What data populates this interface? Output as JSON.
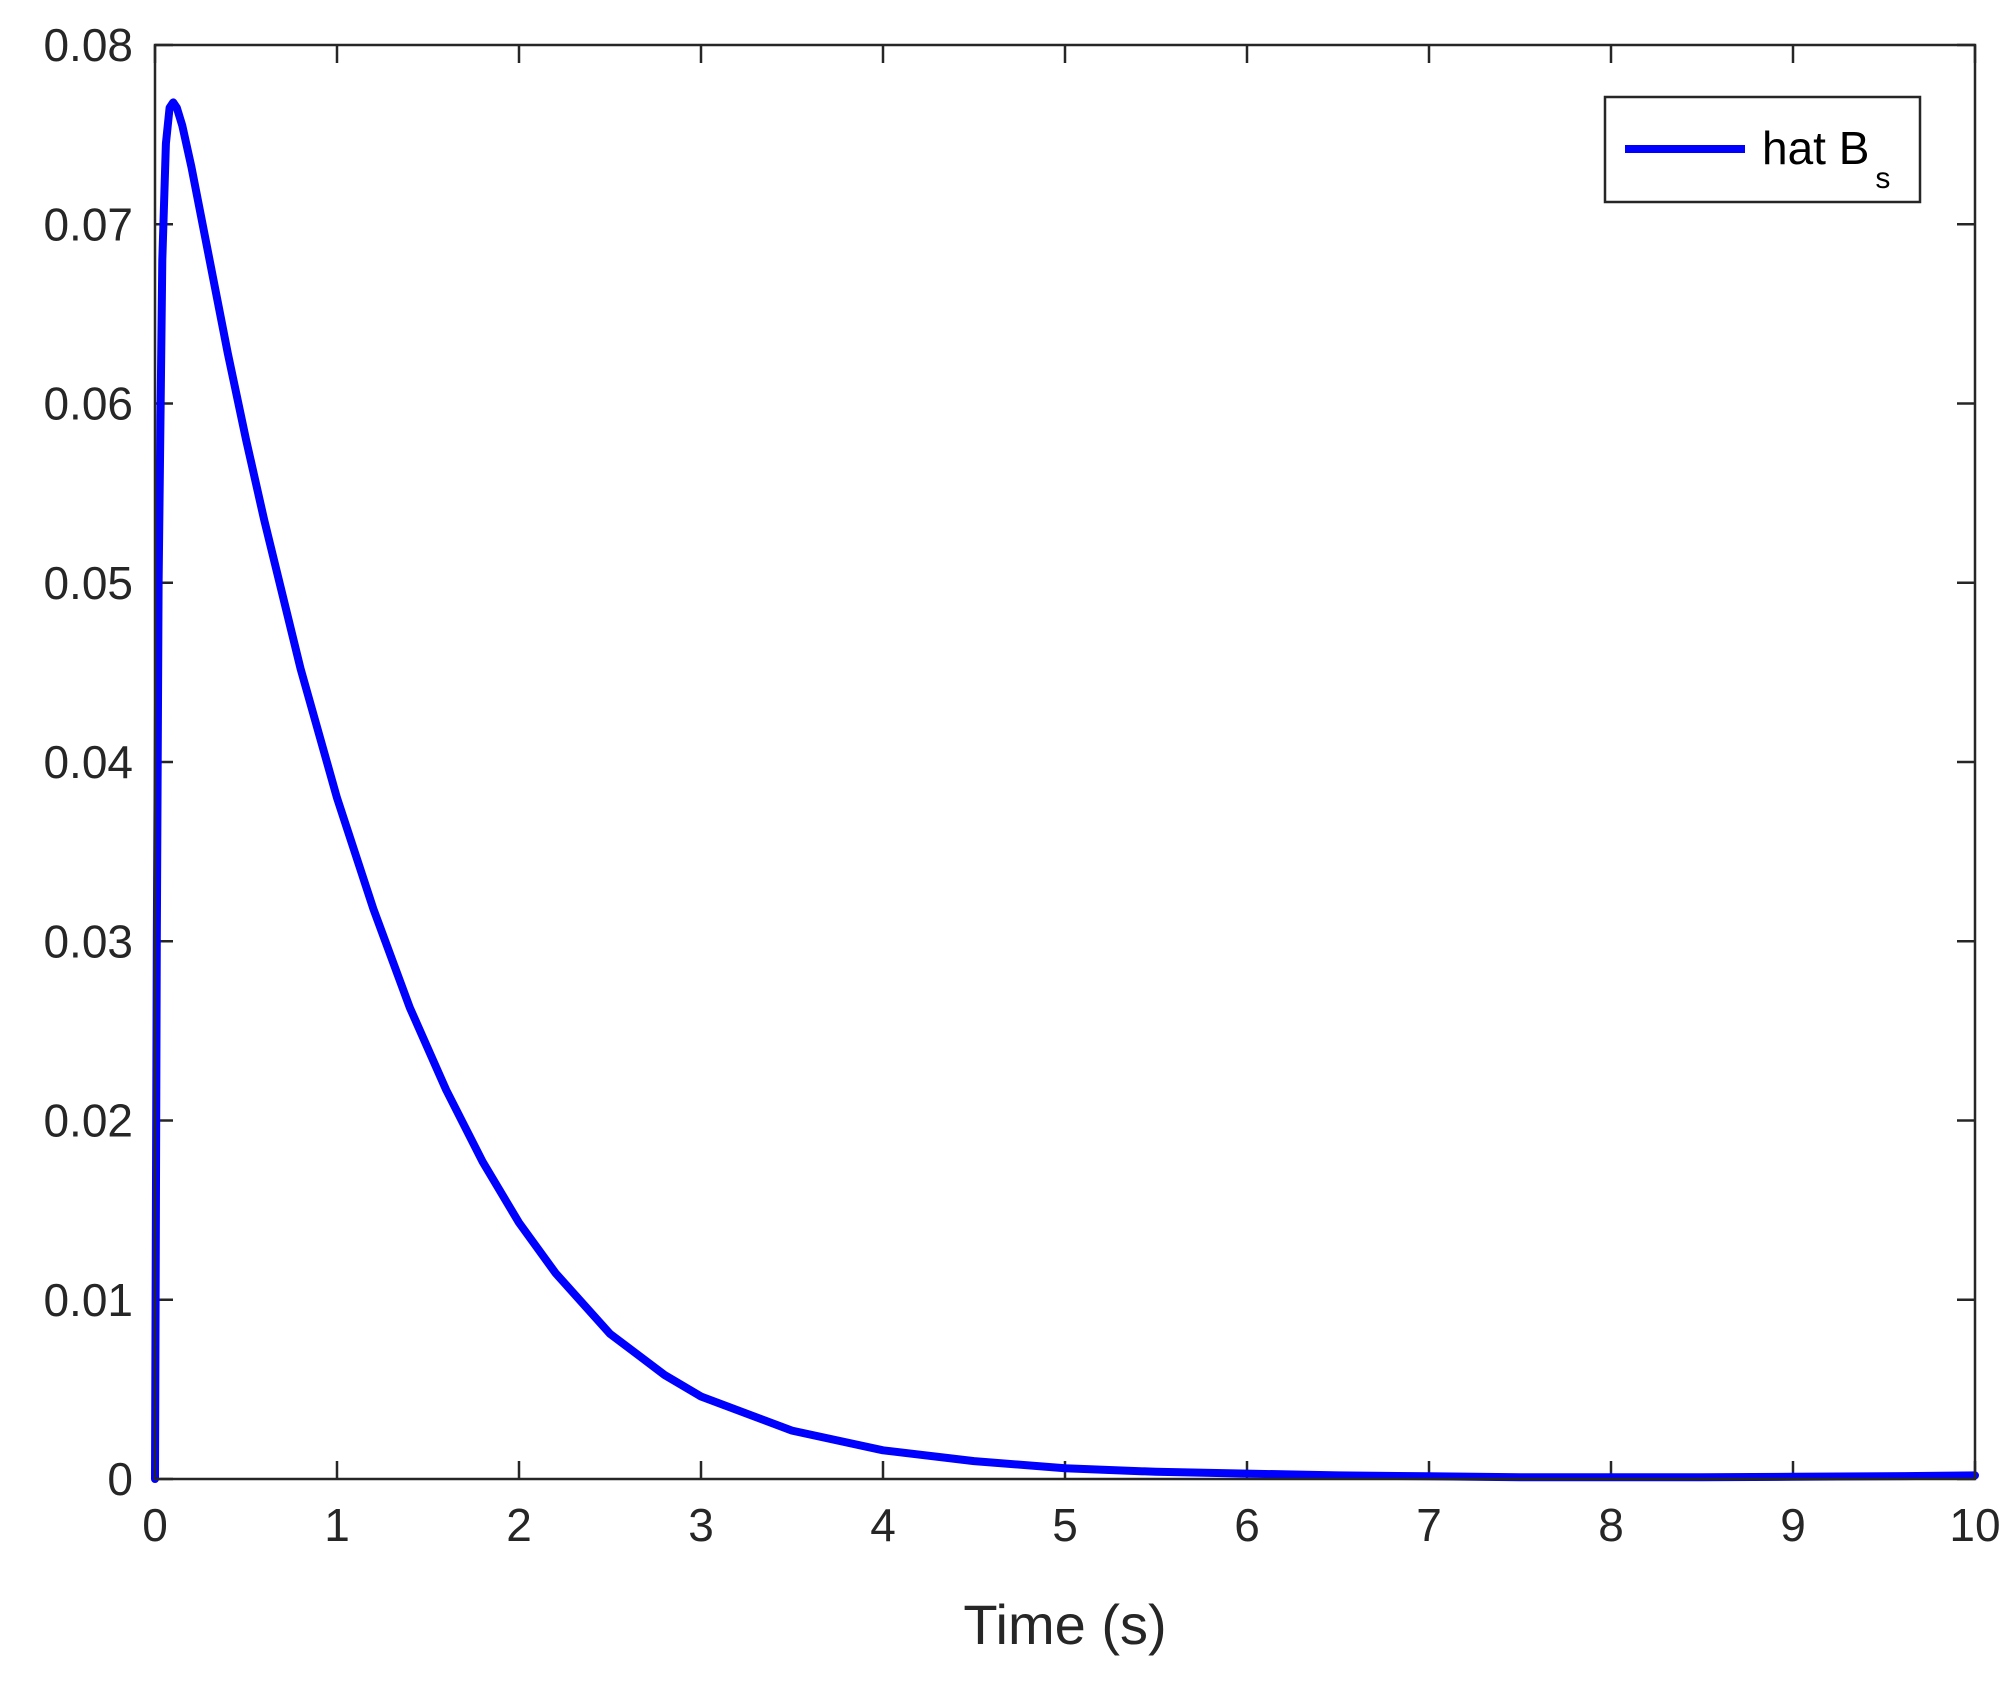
{
  "chart_data": {
    "type": "line",
    "xlabel": "Time (s)",
    "ylabel": "",
    "xlim": [
      0,
      10
    ],
    "ylim": [
      0,
      0.08
    ],
    "x_ticks": [
      0,
      1,
      2,
      3,
      4,
      5,
      6,
      7,
      8,
      9,
      10
    ],
    "x_tick_labels": [
      "0",
      "1",
      "2",
      "3",
      "4",
      "5",
      "6",
      "7",
      "8",
      "9",
      "10"
    ],
    "y_ticks": [
      0,
      0.01,
      0.02,
      0.03,
      0.04,
      0.05,
      0.06,
      0.07,
      0.08
    ],
    "y_tick_labels": [
      "0",
      "0.01",
      "0.02",
      "0.03",
      "0.04",
      "0.05",
      "0.06",
      "0.07",
      "0.08"
    ],
    "grid": false,
    "legend_position": "top-right",
    "legend": {
      "text": "hat B",
      "subscript": "s"
    },
    "series": [
      {
        "name": "hat B_s",
        "color": "#0000ff",
        "x": [
          0,
          0.01,
          0.02,
          0.04,
          0.06,
          0.08,
          0.1,
          0.12,
          0.15,
          0.2,
          0.3,
          0.4,
          0.5,
          0.6,
          0.8,
          1.0,
          1.2,
          1.4,
          1.6,
          1.8,
          2.0,
          2.2,
          2.5,
          2.8,
          3.0,
          3.5,
          4.0,
          4.5,
          5.0,
          5.5,
          6.0,
          6.5,
          7.0,
          7.5,
          8.0,
          8.5,
          9.0,
          9.5,
          10.0
        ],
        "y": [
          0,
          0.03,
          0.05,
          0.068,
          0.0745,
          0.0765,
          0.0768,
          0.0765,
          0.0755,
          0.0732,
          0.068,
          0.0628,
          0.058,
          0.0535,
          0.0452,
          0.038,
          0.0318,
          0.0263,
          0.0217,
          0.0177,
          0.0143,
          0.0115,
          0.0081,
          0.0058,
          0.0046,
          0.0027,
          0.0016,
          0.001,
          0.0006,
          0.0004,
          0.0003,
          0.0002,
          0.00015,
          0.0001,
          0.0001,
          0.0001,
          0.00012,
          0.00015,
          0.0002
        ]
      }
    ]
  }
}
